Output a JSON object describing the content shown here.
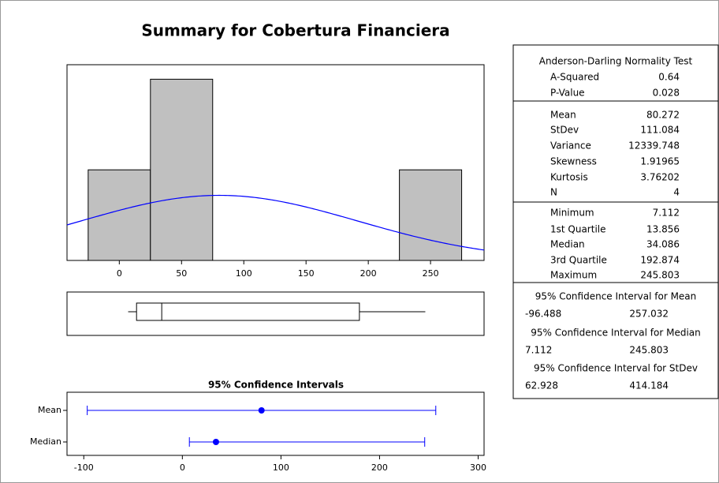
{
  "title": "Summary for Cobertura Financiera",
  "chart_data": [
    {
      "type": "histogram",
      "bins": [
        -25,
        25,
        75,
        125,
        175,
        225,
        275
      ],
      "counts": [
        1,
        2,
        0,
        0,
        0,
        1
      ],
      "color": "#c0c0c0",
      "curve_color": "#0000ff",
      "xlim": [
        -42,
        293
      ],
      "xticks": [
        0,
        50,
        100,
        150,
        200,
        250
      ],
      "ylim": [
        0,
        2.16
      ]
    },
    {
      "type": "interval",
      "title": "95% Confidence Intervals",
      "categories": [
        "Mean",
        "Median"
      ],
      "color": "#0000ff",
      "xlim": [
        -117,
        306
      ],
      "xticks": [
        -100,
        0,
        100,
        200,
        300
      ]
    }
  ],
  "summary": {
    "normality": {
      "title": "Anderson-Darling Normality Test",
      "rows": [
        {
          "label": "A-Squared",
          "value": 0.64
        },
        {
          "label": "P-Value",
          "value": 0.028
        }
      ]
    },
    "moments": {
      "rows": [
        {
          "label": "Mean",
          "value": 80.272
        },
        {
          "label": "StDev",
          "value": 111.084
        },
        {
          "label": "Variance",
          "value": 12339.748
        },
        {
          "label": "Skewness",
          "value": 1.91965
        },
        {
          "label": "Kurtosis",
          "value": 3.76202
        },
        {
          "label": "N",
          "value": 4
        }
      ]
    },
    "quartiles": {
      "rows": [
        {
          "label": "Minimum",
          "value": 7.112
        },
        {
          "label": "1st Quartile",
          "value": 13.856
        },
        {
          "label": "Median",
          "value": 34.086
        },
        {
          "label": "3rd Quartile",
          "value": 192.874
        },
        {
          "label": "Maximum",
          "value": 245.803
        }
      ]
    },
    "intervals": [
      {
        "title": "95% Confidence Interval for Mean",
        "lower": -96.488,
        "upper": 257.032
      },
      {
        "title": "95% Confidence Interval for Median",
        "lower": 7.112,
        "upper": 245.803
      },
      {
        "title": "95% Confidence Interval for StDev",
        "lower": 62.928,
        "upper": 414.184
      }
    ]
  }
}
